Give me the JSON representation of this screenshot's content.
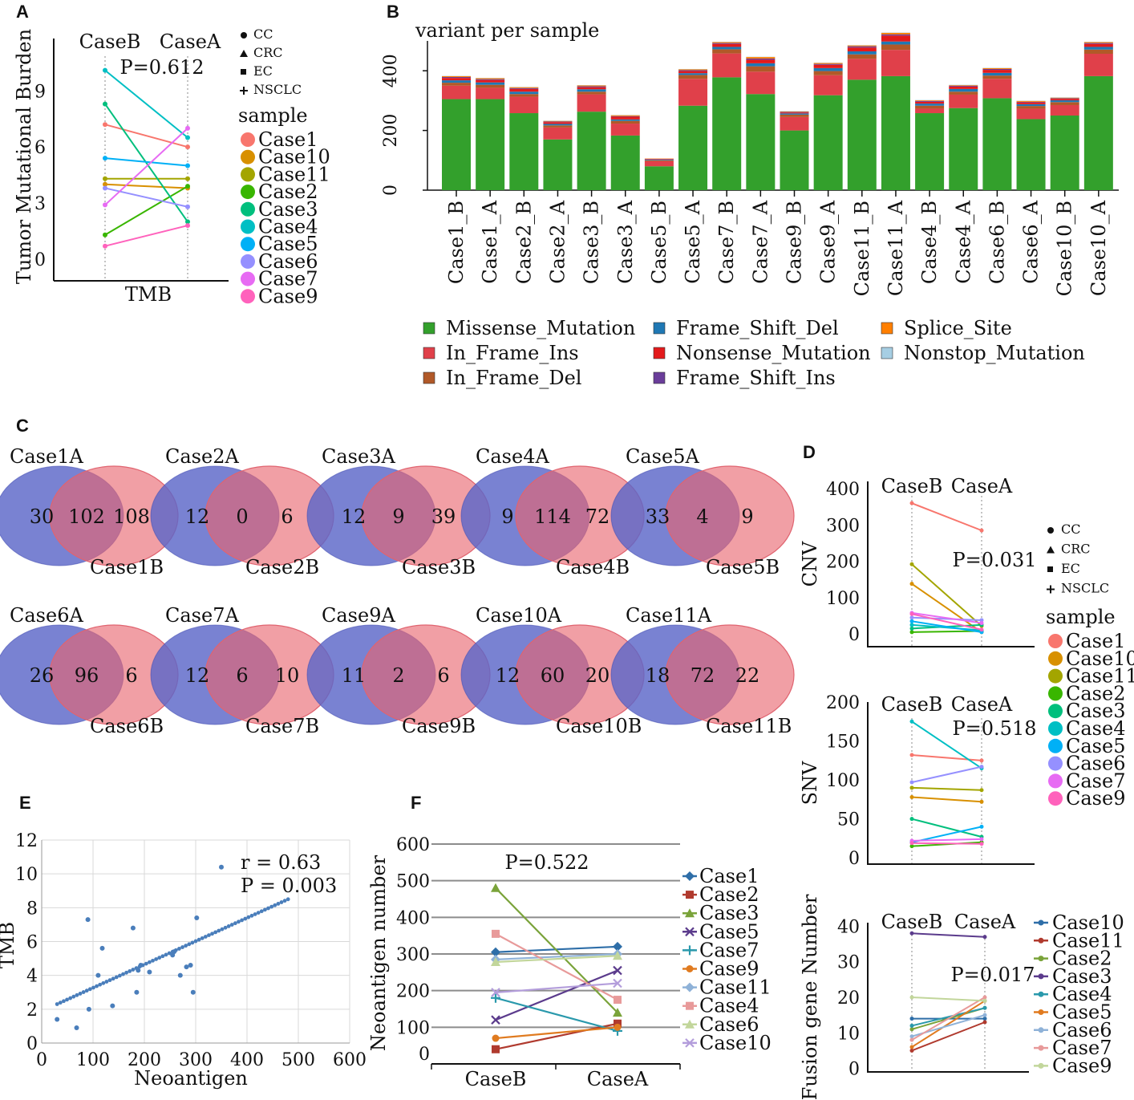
{
  "chart_data": [
    {
      "panel": "A",
      "type": "line",
      "ylabel": "Tumor Mutational Burden",
      "xlabel": "TMB",
      "x": [
        "CaseB",
        "CaseA"
      ],
      "yticks": [
        0,
        3,
        6,
        9
      ],
      "ylim": [
        -0.6,
        11.8
      ],
      "pvalue": "P=0.612",
      "shape_legend": [
        "CC",
        "CRC",
        "EC",
        "NSCLC"
      ],
      "legend_title": "sample",
      "series": [
        {
          "name": "Case1",
          "color": "#f8766d",
          "values": [
            7.2,
            6.0
          ]
        },
        {
          "name": "Case10",
          "color": "#d89000",
          "values": [
            4.0,
            3.8
          ]
        },
        {
          "name": "Case11",
          "color": "#a3a500",
          "values": [
            4.3,
            4.3
          ]
        },
        {
          "name": "Case2",
          "color": "#39b600",
          "values": [
            1.3,
            3.9
          ]
        },
        {
          "name": "Case3",
          "color": "#00bf7d",
          "values": [
            8.3,
            2.0
          ]
        },
        {
          "name": "Case4",
          "color": "#00bfc4",
          "values": [
            10.1,
            6.5
          ]
        },
        {
          "name": "Case5",
          "color": "#00b0f6",
          "values": [
            5.4,
            5.0
          ]
        },
        {
          "name": "Case6",
          "color": "#9590ff",
          "values": [
            3.8,
            2.8
          ]
        },
        {
          "name": "Case7",
          "color": "#e76bf3",
          "values": [
            2.9,
            7.0
          ]
        },
        {
          "name": "Case9",
          "color": "#ff62bc",
          "values": [
            0.7,
            1.8
          ]
        }
      ]
    },
    {
      "panel": "B",
      "type": "bar",
      "title": "variant per sample",
      "yticks": [
        0,
        200,
        400
      ],
      "ylim": [
        0,
        500
      ],
      "categories": [
        "Case1_B",
        "Case1_A",
        "Case2_B",
        "Case2_A",
        "Case3_B",
        "Case3_A",
        "Case5_B",
        "Case5_A",
        "Case7_B",
        "Case7_A",
        "Case9_B",
        "Case9_A",
        "Case11_B",
        "Case11_A",
        "Case4_B",
        "Case4_A",
        "Case6_B",
        "Case6_A",
        "Case10_B",
        "Case10_A"
      ],
      "series": [
        {
          "name": "Missense_Mutation",
          "color": "#33a02c",
          "values": [
            305,
            305,
            258,
            170,
            263,
            183,
            80,
            283,
            378,
            322,
            200,
            318,
            370,
            382,
            258,
            275,
            308,
            238,
            250,
            382
          ]
        },
        {
          "name": "In_Frame_Ins",
          "color": "#e0404a",
          "values": [
            45,
            38,
            55,
            40,
            58,
            40,
            17,
            90,
            80,
            75,
            45,
            67,
            70,
            88,
            15,
            45,
            65,
            35,
            35,
            75
          ]
        },
        {
          "name": "In_Frame_Del",
          "color": "#b15928",
          "values": [
            10,
            10,
            9,
            7,
            9,
            9,
            3,
            13,
            14,
            18,
            8,
            14,
            15,
            18,
            10,
            10,
            11,
            9,
            10,
            14
          ]
        },
        {
          "name": "Frame_Shift_Del",
          "color": "#1f78b4",
          "values": [
            8,
            8,
            8,
            5,
            8,
            5,
            2,
            6,
            8,
            10,
            4,
            10,
            10,
            10,
            7,
            9,
            9,
            6,
            6,
            9
          ]
        },
        {
          "name": "Nonsense_Mutation",
          "color": "#e31a1c",
          "values": [
            8,
            8,
            9,
            6,
            7,
            9,
            2,
            7,
            10,
            12,
            3,
            11,
            13,
            20,
            6,
            8,
            10,
            6,
            5,
            10
          ]
        },
        {
          "name": "Frame_Shift_Ins",
          "color": "#6a3d9a",
          "values": [
            3,
            3,
            3,
            2,
            3,
            2,
            1,
            3,
            3,
            4,
            2,
            3,
            4,
            4,
            3,
            3,
            3,
            2,
            2,
            3
          ]
        },
        {
          "name": "Splice_Site",
          "color": "#ff7f00",
          "values": [
            3,
            3,
            3,
            2,
            3,
            3,
            1,
            3,
            3,
            5,
            2,
            3,
            3,
            5,
            2,
            2,
            3,
            3,
            2,
            3
          ]
        },
        {
          "name": "Nonstop_Mutation",
          "color": "#a6cee3",
          "values": [
            1,
            1,
            1,
            1,
            1,
            1,
            0,
            1,
            1,
            1,
            1,
            1,
            1,
            1,
            1,
            1,
            1,
            1,
            1,
            1
          ]
        }
      ]
    },
    {
      "panel": "C",
      "type": "venn",
      "pairs": [
        {
          "a": "Case1A",
          "b": "Case1B",
          "only_a": "30",
          "both": "102",
          "only_b": "108"
        },
        {
          "a": "Case2A",
          "b": "Case2B",
          "only_a": "12",
          "both": "0",
          "only_b": "6"
        },
        {
          "a": "Case3A",
          "b": "Case3B",
          "only_a": "12",
          "both": "9",
          "only_b": "39"
        },
        {
          "a": "Case4A",
          "b": "Case4B",
          "only_a": "9",
          "both": "114",
          "only_b": "72"
        },
        {
          "a": "Case5A",
          "b": "Case5B",
          "only_a": "33",
          "both": "4",
          "only_b": "9"
        },
        {
          "a": "Case6A",
          "b": "Case6B",
          "only_a": "26",
          "both": "96",
          "only_b": "6"
        },
        {
          "a": "Case7A",
          "b": "Case7B",
          "only_a": "12",
          "both": "6",
          "only_b": "10"
        },
        {
          "a": "Case9A",
          "b": "Case9B",
          "only_a": "11",
          "both": "2",
          "only_b": "6"
        },
        {
          "a": "Case10A",
          "b": "Case10B",
          "only_a": "12",
          "both": "60",
          "only_b": "20"
        },
        {
          "a": "Case11A",
          "b": "Case11B",
          "only_a": "18",
          "both": "72",
          "only_b": "22"
        }
      ]
    },
    {
      "panel": "D1",
      "type": "line",
      "ylabel": "CNV",
      "x": [
        "CaseB",
        "CaseA"
      ],
      "yticks": [
        0,
        100,
        200,
        300,
        400
      ],
      "ylim": [
        -35,
        420
      ],
      "pvalue": "P=0.031",
      "shape_legend": [
        "CC",
        "CRC",
        "EC",
        "NSCLC"
      ],
      "legend_title": "sample",
      "legend_entries": [
        "Case1",
        "Case10",
        "Case11",
        "Case2",
        "Case3",
        "Case4",
        "Case5",
        "Case6",
        "Case7",
        "Case9"
      ],
      "series": [
        {
          "name": "Case1",
          "color": "#f8766d",
          "values": [
            360,
            285
          ]
        },
        {
          "name": "Case10",
          "color": "#d89000",
          "values": [
            138,
            5
          ]
        },
        {
          "name": "Case11",
          "color": "#a3a500",
          "values": [
            192,
            22
          ]
        },
        {
          "name": "Case2",
          "color": "#39b600",
          "values": [
            5,
            8
          ]
        },
        {
          "name": "Case3",
          "color": "#00bf7d",
          "values": [
            15,
            25
          ]
        },
        {
          "name": "Case4",
          "color": "#00bfc4",
          "values": [
            25,
            10
          ]
        },
        {
          "name": "Case5",
          "color": "#00b0f6",
          "values": [
            35,
            5
          ]
        },
        {
          "name": "Case6",
          "color": "#9590ff",
          "values": [
            45,
            38
          ]
        },
        {
          "name": "Case7",
          "color": "#e76bf3",
          "values": [
            58,
            30
          ]
        },
        {
          "name": "Case9",
          "color": "#ff62bc",
          "values": [
            55,
            12
          ]
        }
      ]
    },
    {
      "panel": "D2",
      "type": "line",
      "ylabel": "SNV",
      "x": [
        "CaseB",
        "CaseA"
      ],
      "yticks": [
        0,
        50,
        100,
        150,
        200
      ],
      "ylim": [
        -8,
        200
      ],
      "pvalue": "P=0.518",
      "series": [
        {
          "name": "Case1",
          "color": "#f8766d",
          "values": [
            132,
            125
          ]
        },
        {
          "name": "Case10",
          "color": "#d89000",
          "values": [
            78,
            72
          ]
        },
        {
          "name": "Case11",
          "color": "#a3a500",
          "values": [
            90,
            87
          ]
        },
        {
          "name": "Case2",
          "color": "#39b600",
          "values": [
            15,
            20
          ]
        },
        {
          "name": "Case3",
          "color": "#00bf7d",
          "values": [
            50,
            27
          ]
        },
        {
          "name": "Case4",
          "color": "#00bfc4",
          "values": [
            175,
            115
          ]
        },
        {
          "name": "Case5",
          "color": "#00b0f6",
          "values": [
            20,
            40
          ]
        },
        {
          "name": "Case6",
          "color": "#9590ff",
          "values": [
            97,
            117
          ]
        },
        {
          "name": "Case7",
          "color": "#e76bf3",
          "values": [
            22,
            24
          ]
        },
        {
          "name": "Case9",
          "color": "#ff62bc",
          "values": [
            19,
            18
          ]
        }
      ]
    },
    {
      "panel": "D3",
      "type": "line",
      "ylabel": "Fusion gene Number",
      "x": [
        "CaseB",
        "CaseA"
      ],
      "yticks": [
        0,
        10,
        20,
        30,
        40
      ],
      "ylim": [
        -1,
        41
      ],
      "pvalue": "P=0.017",
      "series": [
        {
          "name": "Case10",
          "color": "#2e6ea8",
          "values": [
            14,
            14
          ]
        },
        {
          "name": "Case11",
          "color": "#b03a2e",
          "values": [
            5,
            13
          ]
        },
        {
          "name": "Case2",
          "color": "#7aa33a",
          "values": [
            11,
            17
          ]
        },
        {
          "name": "Case3",
          "color": "#5b3b8c",
          "values": [
            38,
            37
          ]
        },
        {
          "name": "Case4",
          "color": "#2a99ac",
          "values": [
            12,
            17
          ]
        },
        {
          "name": "Case5",
          "color": "#e07b20",
          "values": [
            6,
            19
          ]
        },
        {
          "name": "Case6",
          "color": "#8fb2d8",
          "values": [
            9,
            15
          ]
        },
        {
          "name": "Case7",
          "color": "#e89a9a",
          "values": [
            8,
            20
          ]
        },
        {
          "name": "Case9",
          "color": "#c2d69b",
          "values": [
            20,
            19
          ]
        }
      ]
    },
    {
      "panel": "E",
      "type": "scatter",
      "xlabel": "Neoantigen",
      "ylabel": "TMB",
      "xticks": [
        0,
        100,
        200,
        300,
        400,
        500,
        600
      ],
      "yticks": [
        0,
        2,
        4,
        6,
        8,
        10,
        12
      ],
      "xlim": [
        0,
        600
      ],
      "ylim": [
        0,
        12
      ],
      "annotation_r": "r = 0.63",
      "annotation_p": "P = 0.003",
      "color": "#4a7ebb",
      "points": [
        [
          30,
          1.4
        ],
        [
          68,
          0.9
        ],
        [
          90,
          7.3
        ],
        [
          92,
          2.0
        ],
        [
          110,
          4.0
        ],
        [
          118,
          5.6
        ],
        [
          138,
          2.2
        ],
        [
          178,
          6.8
        ],
        [
          185,
          3.0
        ],
        [
          188,
          4.3
        ],
        [
          193,
          4.6
        ],
        [
          210,
          4.2
        ],
        [
          255,
          5.2
        ],
        [
          258,
          5.4
        ],
        [
          270,
          4.0
        ],
        [
          282,
          4.5
        ],
        [
          290,
          4.6
        ],
        [
          295,
          3.0
        ],
        [
          302,
          7.4
        ],
        [
          350,
          10.4
        ]
      ],
      "trend": [
        [
          30,
          2.3
        ],
        [
          480,
          8.5
        ]
      ]
    },
    {
      "panel": "F",
      "type": "line",
      "ylabel": "Neoantigen number",
      "x": [
        "CaseB",
        "CaseA"
      ],
      "yticks": [
        0,
        100,
        200,
        300,
        400,
        500,
        600
      ],
      "ylim": [
        0,
        600
      ],
      "pvalue": "P=0.522",
      "series": [
        {
          "name": "Case1",
          "color": "#2e6ea8",
          "values": [
            305,
            320
          ]
        },
        {
          "name": "Case2",
          "color": "#b03a2e",
          "values": [
            40,
            110
          ]
        },
        {
          "name": "Case3",
          "color": "#7aa33a",
          "values": [
            480,
            140
          ]
        },
        {
          "name": "Case5",
          "color": "#5b3b8c",
          "values": [
            120,
            255
          ]
        },
        {
          "name": "Case7",
          "color": "#2a99ac",
          "values": [
            180,
            90
          ]
        },
        {
          "name": "Case9",
          "color": "#e07b20",
          "values": [
            70,
            100
          ]
        },
        {
          "name": "Case11",
          "color": "#8fb2d8",
          "values": [
            285,
            300
          ]
        },
        {
          "name": "Case4",
          "color": "#e89a9a",
          "values": [
            355,
            175
          ]
        },
        {
          "name": "Case6",
          "color": "#c2d69b",
          "values": [
            278,
            295
          ]
        },
        {
          "name": "Case10",
          "color": "#b39ddb",
          "values": [
            195,
            220
          ]
        }
      ]
    }
  ],
  "panel_labels": [
    "A",
    "B",
    "C",
    "D",
    "E",
    "F"
  ]
}
